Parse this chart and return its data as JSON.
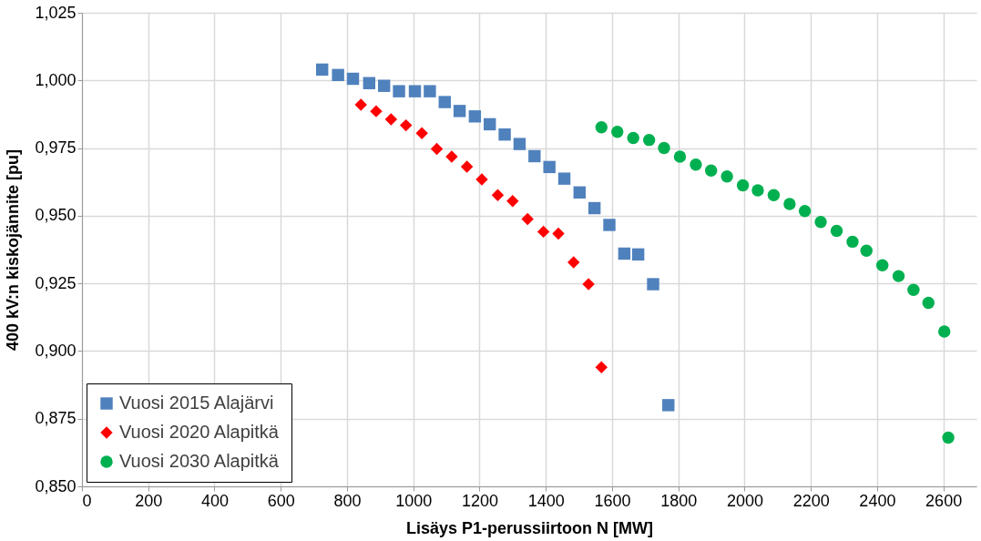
{
  "chart_data": {
    "type": "scatter",
    "xlabel": "Lisäys P1-perussiirtoon N [MW]",
    "ylabel": "400 kV:n kiskojännite [pu]",
    "xlim": [
      0,
      2700
    ],
    "xticks": [
      0,
      200,
      400,
      600,
      800,
      1000,
      1200,
      1400,
      1600,
      1800,
      2000,
      2200,
      2400,
      2600
    ],
    "ylim": [
      0.85,
      1.025
    ],
    "yticks": [
      {
        "value": 0.85,
        "label": "0,850"
      },
      {
        "value": 0.875,
        "label": "0,875"
      },
      {
        "value": 0.9,
        "label": "0,900"
      },
      {
        "value": 0.925,
        "label": "0,925"
      },
      {
        "value": 0.95,
        "label": "0,950"
      },
      {
        "value": 0.975,
        "label": "0,975"
      },
      {
        "value": 1.0,
        "label": "1,000"
      },
      {
        "value": 1.025,
        "label": "1,025"
      }
    ],
    "grid": true,
    "legend": "bottom left",
    "series": [
      {
        "name": "Vuosi 2015 Alajärvi",
        "color": "#4f81bd",
        "marker": "square",
        "x": [
          725,
          773,
          818,
          867,
          912,
          957,
          1005,
          1050,
          1095,
          1140,
          1186,
          1231,
          1276,
          1321,
          1366,
          1411,
          1456,
          1502,
          1547,
          1592,
          1637,
          1679,
          1724,
          1770
        ],
        "values": [
          1.004,
          1.002,
          1.0006,
          0.999,
          0.998,
          0.996,
          0.996,
          0.996,
          0.992,
          0.9887,
          0.9867,
          0.9838,
          0.98,
          0.9765,
          0.972,
          0.968,
          0.9637,
          0.9586,
          0.9528,
          0.9466,
          0.936,
          0.9357,
          0.9247,
          0.88
        ]
      },
      {
        "name": "Vuosi 2020 Alapitkä",
        "color": "#ff0000",
        "marker": "diamond",
        "x": [
          842,
          888,
          933,
          978,
          1026,
          1071,
          1116,
          1162,
          1207,
          1255,
          1300,
          1345,
          1393,
          1438,
          1484,
          1529,
          1568
        ],
        "values": [
          0.991,
          0.9886,
          0.9856,
          0.9834,
          0.9805,
          0.9747,
          0.9718,
          0.9681,
          0.9634,
          0.9576,
          0.9554,
          0.9488,
          0.9441,
          0.9434,
          0.9328,
          0.9247,
          0.894
        ]
      },
      {
        "name": "Vuosi 2030 Alapitkä",
        "color": "#00b050",
        "marker": "circle",
        "x": [
          1568,
          1616,
          1664,
          1712,
          1757,
          1805,
          1853,
          1899,
          1947,
          1995,
          2040,
          2088,
          2136,
          2182,
          2230,
          2278,
          2326,
          2368,
          2416,
          2465,
          2510,
          2555,
          2603,
          2615
        ],
        "values": [
          0.9827,
          0.981,
          0.9787,
          0.978,
          0.975,
          0.9718,
          0.9689,
          0.9667,
          0.9645,
          0.9612,
          0.9594,
          0.9576,
          0.9543,
          0.9517,
          0.9477,
          0.9444,
          0.9404,
          0.9371,
          0.9317,
          0.9277,
          0.9226,
          0.9178,
          0.9072,
          0.868
        ]
      }
    ]
  }
}
